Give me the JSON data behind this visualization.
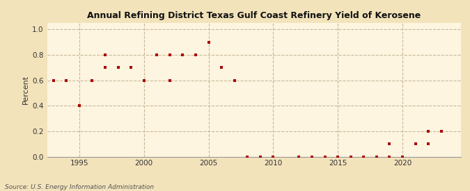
{
  "title": "Annual Refining District Texas Gulf Coast Refinery Yield of Kerosene",
  "ylabel": "Percent",
  "source": "Source: U.S. Energy Information Administration",
  "background_color": "#f3e3bb",
  "plot_background_color": "#fdf5e0",
  "grid_color": "#c8b89a",
  "marker_color": "#aa0000",
  "xlim": [
    1992.5,
    2024.5
  ],
  "ylim": [
    0.0,
    1.05
  ],
  "yticks": [
    0.0,
    0.2,
    0.4,
    0.6,
    0.8,
    1.0
  ],
  "xticks": [
    1995,
    2000,
    2005,
    2010,
    2015,
    2020
  ],
  "data": [
    [
      1993,
      0.6
    ],
    [
      1994,
      0.6
    ],
    [
      1995,
      0.4
    ],
    [
      1996,
      0.6
    ],
    [
      1997,
      0.8
    ],
    [
      1997,
      0.7
    ],
    [
      1998,
      0.7
    ],
    [
      1999,
      0.7
    ],
    [
      1999,
      0.7
    ],
    [
      2000,
      0.6
    ],
    [
      2001,
      0.8
    ],
    [
      2002,
      0.6
    ],
    [
      2002,
      0.8
    ],
    [
      2003,
      0.8
    ],
    [
      2004,
      0.8
    ],
    [
      2005,
      0.9
    ],
    [
      2006,
      0.7
    ],
    [
      2007,
      0.6
    ],
    [
      2008,
      0.0
    ],
    [
      2009,
      0.0
    ],
    [
      2010,
      0.0
    ],
    [
      2012,
      0.0
    ],
    [
      2013,
      0.0
    ],
    [
      2014,
      0.0
    ],
    [
      2015,
      0.0
    ],
    [
      2015,
      0.0
    ],
    [
      2016,
      0.0
    ],
    [
      2017,
      0.0
    ],
    [
      2017,
      0.0
    ],
    [
      2018,
      0.0
    ],
    [
      2019,
      0.0
    ],
    [
      2019,
      0.1
    ],
    [
      2020,
      0.0
    ],
    [
      2021,
      0.1
    ],
    [
      2021,
      0.1
    ],
    [
      2022,
      0.1
    ],
    [
      2022,
      0.2
    ],
    [
      2023,
      0.2
    ]
  ]
}
